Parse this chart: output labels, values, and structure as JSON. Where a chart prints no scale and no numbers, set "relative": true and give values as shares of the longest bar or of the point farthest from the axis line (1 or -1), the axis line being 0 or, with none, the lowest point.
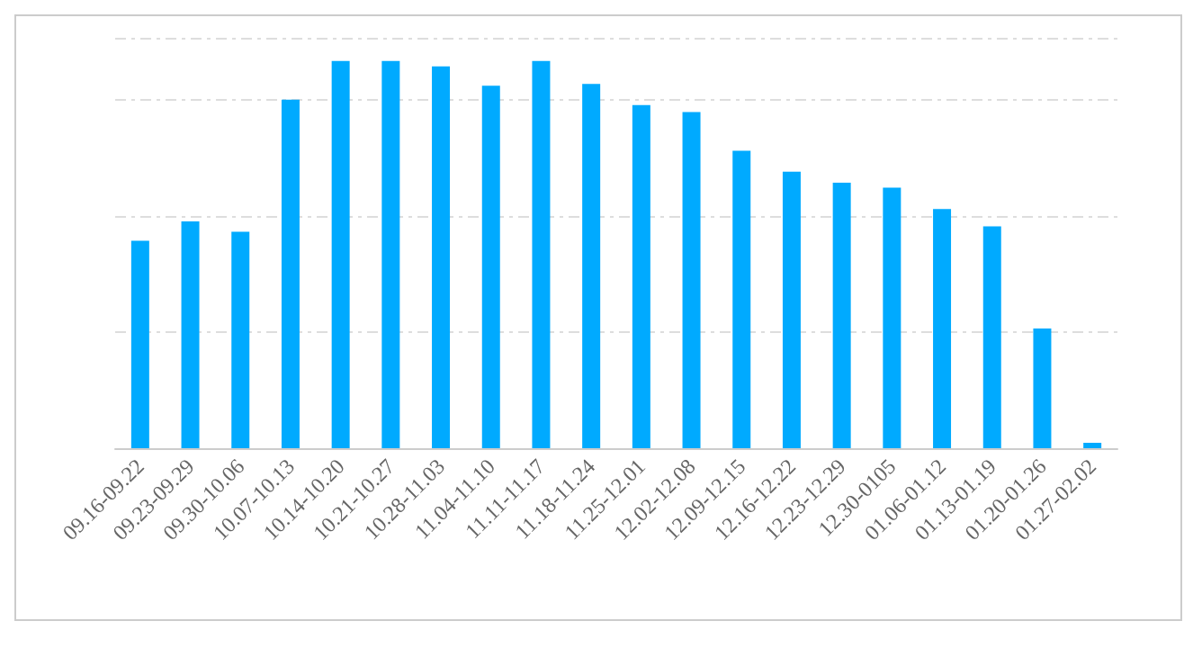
{
  "chart_data": {
    "type": "bar",
    "relative": true,
    "grid": "y",
    "color": "#00aaff",
    "categories": [
      "09.16-09.22",
      "09.23-09.29",
      "09.30-10.06",
      "10.07-10.13",
      "10.14-10.20",
      "10.21-10.27",
      "10.28-11.03",
      "11.04-11.10",
      "11.11-11.17",
      "11.18-11.24",
      "11.25-12.01",
      "12.02-12.08",
      "12.09-12.15",
      "12.16-12.22",
      "12.23-12.29",
      "12.30-0105",
      "01.06-01.12",
      "01.13-01.19",
      "01.20-01.26",
      "01.27-02.02"
    ],
    "values": [
      0.536,
      0.586,
      0.559,
      0.9,
      1,
      1,
      0.986,
      0.936,
      1,
      0.941,
      0.886,
      0.868,
      0.768,
      0.714,
      0.686,
      0.673,
      0.618,
      0.573,
      0.309,
      0.014
    ]
  }
}
